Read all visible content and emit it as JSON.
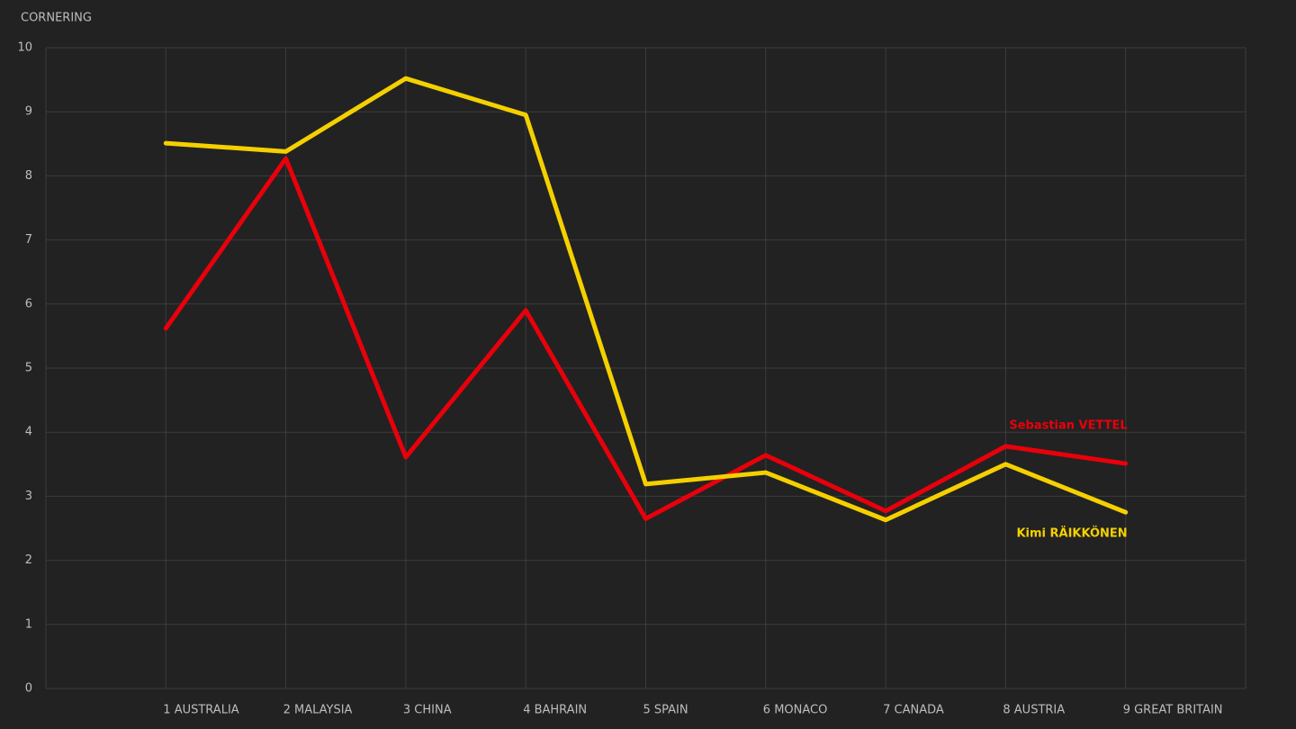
{
  "chart_data": {
    "type": "line",
    "title": "CORNERING",
    "categories": [
      "1 AUSTRALIA",
      "2 MALAYSIA",
      "3 CHINA",
      "4 BAHRAIN",
      "5 SPAIN",
      "6 MONACO",
      "7 CANADA",
      "8 AUSTRIA",
      "9 GREAT BRITAIN"
    ],
    "series": [
      {
        "name": "Sebastian VETTEL",
        "color": "#e8000b",
        "values": [
          5.62,
          8.27,
          3.61,
          5.9,
          2.65,
          3.64,
          2.77,
          3.78,
          3.51
        ]
      },
      {
        "name": "Kimi RÄIKKÖNEN",
        "color": "#f5d000",
        "values": [
          8.51,
          8.38,
          9.52,
          8.95,
          3.19,
          3.37,
          2.63,
          3.5,
          2.75
        ]
      }
    ],
    "ylim": [
      0,
      10
    ],
    "yticks": [
      0,
      1,
      2,
      3,
      4,
      5,
      6,
      7,
      8,
      9,
      10
    ],
    "grid": true
  }
}
